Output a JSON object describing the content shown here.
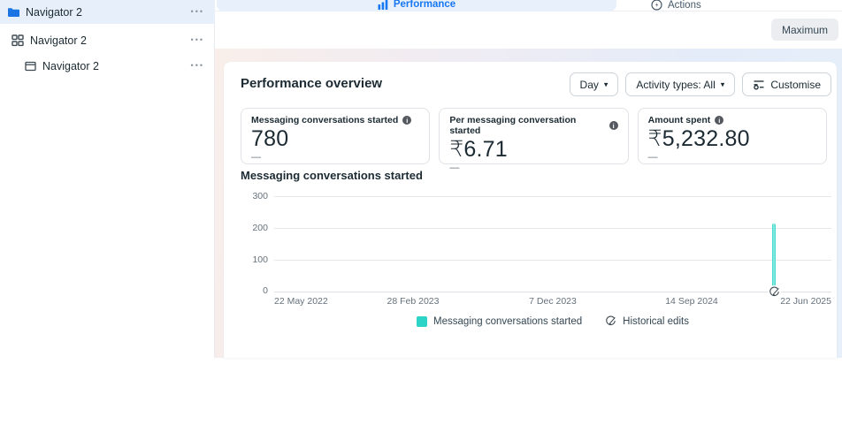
{
  "icons": {
    "dots_menu": "•••",
    "chevron_down": "▾",
    "info_letter": "i"
  },
  "sidebar": {
    "items": [
      {
        "label": "Navigator 2",
        "icon": "folder-icon",
        "selected": true
      },
      {
        "label": "Navigator 2",
        "icon": "grid-icon",
        "selected": false
      },
      {
        "label": "Navigator 2",
        "icon": "frame-icon",
        "selected": false
      }
    ]
  },
  "tabs": [
    {
      "label": "Performance",
      "icon": "bar-chart-icon",
      "active": true
    },
    {
      "label": "Actions",
      "icon": "lightning-circle-icon",
      "active": false
    }
  ],
  "window": {
    "maximize_label": "Maximum"
  },
  "overview": {
    "title": "Performance overview",
    "controls": {
      "interval": "Day",
      "activity_types": "Activity types: All",
      "customise": "Customise"
    },
    "metrics": [
      {
        "label": "Messaging conversations started",
        "value": "780",
        "change": "—"
      },
      {
        "label": "Per messaging conversation started",
        "value": "₹6.71",
        "change": "—"
      },
      {
        "label": "Amount spent",
        "value": "₹5,232.80",
        "change": "—"
      }
    ]
  },
  "chart_data": {
    "type": "area",
    "title": "Messaging conversations started",
    "xlabel": "",
    "ylabel": "",
    "ylim": [
      0,
      300
    ],
    "grid": true,
    "yticks": [
      "300",
      "200",
      "100",
      "0"
    ],
    "xticks": [
      "22 May 2022",
      "28 Feb 2023",
      "7 Dec 2023",
      "14 Sep 2024",
      "22 Jun 2025"
    ],
    "series": [
      {
        "name": "Messaging conversations started",
        "color": "#2bd4c6",
        "shape": "flat at 0 across the entire date range with a single narrow spike near the right edge",
        "spike": {
          "x_label": "mid-Jun 2025",
          "x_fraction": 0.897,
          "value": 215
        }
      }
    ],
    "historical_edits_marker": {
      "x_fraction": 0.897,
      "label": "Historical edits"
    },
    "legend": [
      {
        "label": "Messaging conversations started",
        "marker": "teal-square"
      },
      {
        "label": "Historical edits",
        "marker": "pencil-circle-icon"
      }
    ],
    "legend_position": "bottom-center"
  },
  "colors": {
    "accent_blue": "#1877f2",
    "series_teal": "#2bd4c6",
    "selected_row_bg": "#e7f0fa",
    "active_tab_bg": "#e8f0fc",
    "band_gradient_left": "#f9eeea",
    "band_gradient_right": "#e4ecf9"
  }
}
